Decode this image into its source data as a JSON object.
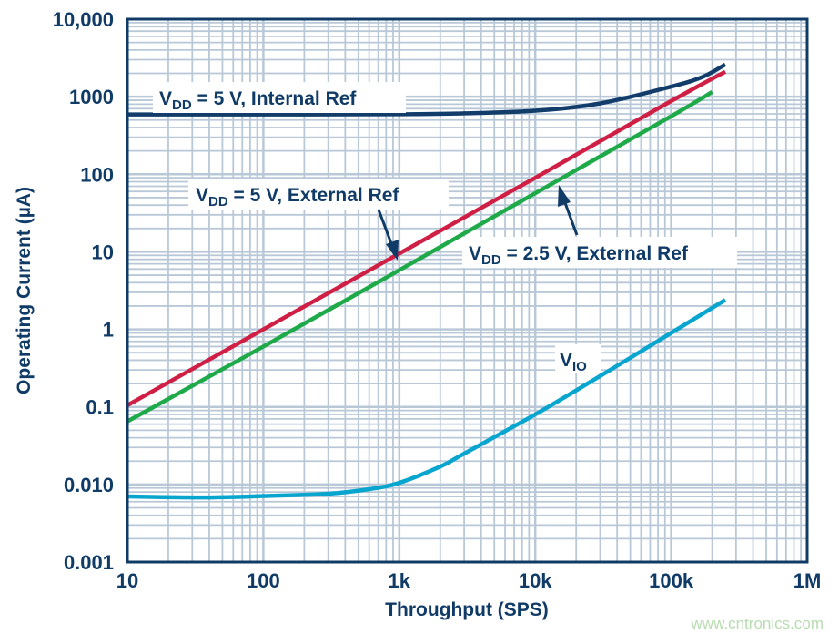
{
  "chart_data": {
    "type": "line",
    "title": "",
    "xlabel": "Throughput (SPS)",
    "ylabel": "Operating Current (µA)",
    "xscale": "log",
    "yscale": "log",
    "xlim": [
      10,
      1000000
    ],
    "ylim": [
      0.001,
      10000
    ],
    "grid": true,
    "x_tick_labels": [
      "10",
      "100",
      "1k",
      "10k",
      "100k",
      "1M"
    ],
    "x_ticks": [
      10,
      100,
      1000,
      10000,
      100000,
      1000000
    ],
    "y_tick_labels": [
      "0.001",
      "0.010",
      "0.1",
      "1",
      "10",
      "100",
      "1000",
      "10,000"
    ],
    "y_ticks": [
      0.001,
      0.01,
      0.1,
      1,
      10,
      100,
      1000,
      10000
    ],
    "series": [
      {
        "name": "VDD = 5 V, Internal Ref",
        "color": "#123d6b",
        "x": [
          10,
          100,
          1000,
          3000,
          10000,
          30000,
          100000,
          170000,
          250000
        ],
        "y": [
          590,
          590,
          595,
          610,
          660,
          820,
          1350,
          1800,
          2600
        ]
      },
      {
        "name": "VDD = 5 V, External Ref",
        "color": "#d01f45",
        "x": [
          10,
          100,
          1000,
          10000,
          100000,
          250000
        ],
        "y": [
          0.105,
          1.0,
          9.5,
          90,
          880,
          2100
        ]
      },
      {
        "name": "VDD = 2.5 V, External Ref",
        "color": "#1faa4a",
        "x": [
          10,
          100,
          1000,
          10000,
          100000,
          200000
        ],
        "y": [
          0.065,
          0.6,
          5.8,
          57,
          560,
          1150
        ]
      },
      {
        "name": "VIO",
        "color": "#08a5cf",
        "x": [
          10,
          30,
          60,
          100,
          300,
          600,
          1000,
          2000,
          3000,
          10000,
          30000,
          100000,
          250000
        ],
        "y": [
          0.007,
          0.0068,
          0.0069,
          0.0071,
          0.0076,
          0.0087,
          0.0105,
          0.017,
          0.025,
          0.08,
          0.25,
          0.9,
          2.4
        ]
      }
    ],
    "annotations": [
      {
        "main": "V",
        "sub": "DD",
        "rest": " = 5 V, Internal Ref"
      },
      {
        "main": "V",
        "sub": "DD",
        "rest": " = 5 V, External Ref"
      },
      {
        "main": "V",
        "sub": "DD",
        "rest": " = 2.5 V, External Ref"
      },
      {
        "main": "V",
        "sub": "IO",
        "rest": ""
      }
    ]
  },
  "watermark": "www.cntronics.com",
  "colors": {
    "axis": "#0f3b66",
    "grid": "#b9c8d7"
  }
}
